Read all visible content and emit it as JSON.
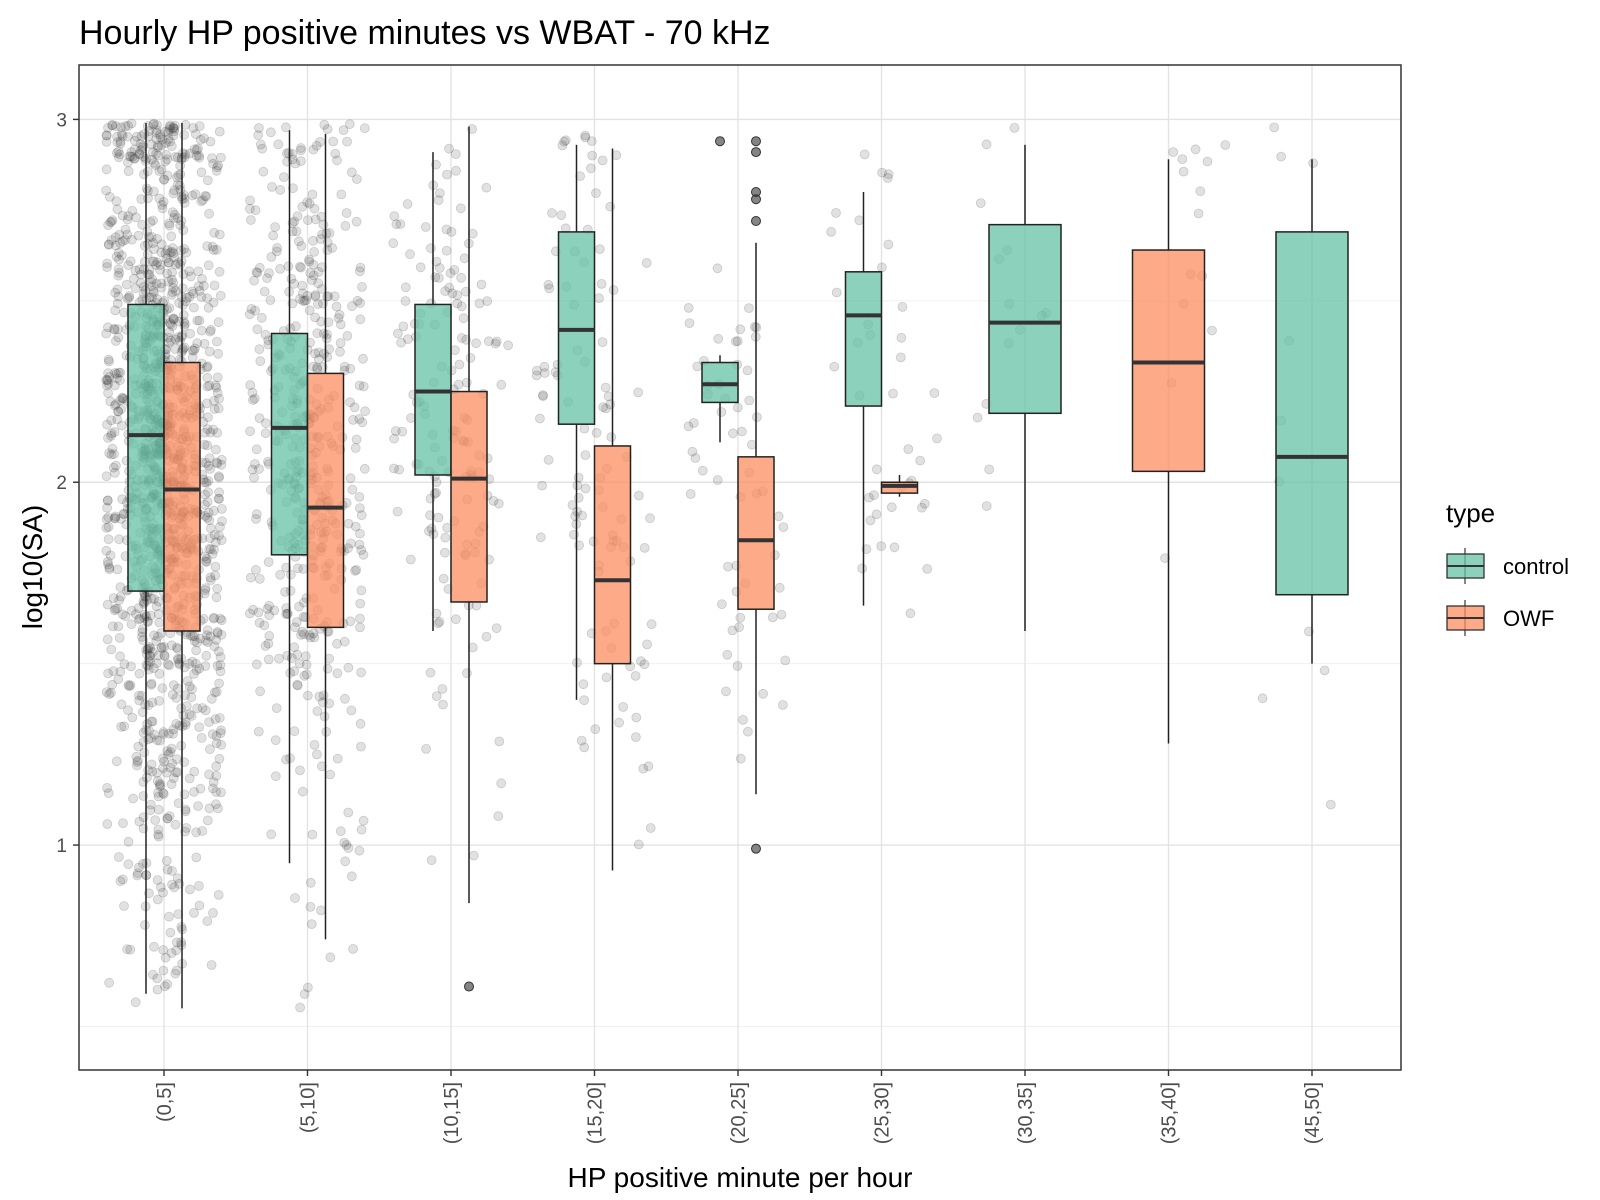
{
  "chart_data": {
    "type": "boxplot",
    "title": "Hourly HP positive minutes vs WBAT - 70 kHz",
    "xlabel": "HP positive minute per hour",
    "ylabel": "log10(SA)",
    "ylim": [
      0.38,
      3.15
    ],
    "yticks": [
      1,
      2,
      3
    ],
    "grid": true,
    "legend": {
      "title": "type",
      "position": "right",
      "entries": [
        {
          "name": "control",
          "color": "#66c2a5"
        },
        {
          "name": "OWF",
          "color": "#fc8d62"
        }
      ]
    },
    "categories": [
      "(0,5]",
      "(5,10]",
      "(10,15]",
      "(15,20]",
      "(20,25]",
      "(25,30]",
      "(30,35]",
      "(35,40]",
      "(45,50]"
    ],
    "colors": {
      "control": "#66c2a5",
      "OWF": "#fc8d62",
      "points": "#333333",
      "box_stroke": "#222222"
    },
    "series": [
      {
        "name": "control",
        "boxes": [
          {
            "category": "(0,5]",
            "whisker_low": 0.59,
            "q1": 1.7,
            "median": 2.13,
            "q3": 2.49,
            "whisker_high": 2.99,
            "outliers": []
          },
          {
            "category": "(5,10]",
            "whisker_low": 0.95,
            "q1": 1.8,
            "median": 2.15,
            "q3": 2.41,
            "whisker_high": 2.97,
            "outliers": []
          },
          {
            "category": "(10,15]",
            "whisker_low": 1.59,
            "q1": 2.02,
            "median": 2.25,
            "q3": 2.49,
            "whisker_high": 2.91,
            "outliers": []
          },
          {
            "category": "(15,20]",
            "whisker_low": 1.4,
            "q1": 2.16,
            "median": 2.42,
            "q3": 2.69,
            "whisker_high": 2.93,
            "outliers": []
          },
          {
            "category": "(20,25]",
            "whisker_low": 2.11,
            "q1": 2.22,
            "median": 2.27,
            "q3": 2.33,
            "whisker_high": 2.35,
            "outliers": [
              2.94
            ]
          },
          {
            "category": "(25,30]",
            "whisker_low": 1.66,
            "q1": 2.21,
            "median": 2.46,
            "q3": 2.58,
            "whisker_high": 2.8,
            "outliers": []
          },
          {
            "category": "(30,35]",
            "whisker_low": 1.59,
            "q1": 2.19,
            "median": 2.44,
            "q3": 2.71,
            "whisker_high": 2.93,
            "outliers": []
          },
          {
            "category": "(45,50]",
            "whisker_low": 1.5,
            "q1": 1.69,
            "median": 2.07,
            "q3": 2.69,
            "whisker_high": 2.89,
            "outliers": []
          }
        ]
      },
      {
        "name": "OWF",
        "boxes": [
          {
            "category": "(0,5]",
            "whisker_low": 0.55,
            "q1": 1.59,
            "median": 1.98,
            "q3": 2.33,
            "whisker_high": 2.99,
            "outliers": []
          },
          {
            "category": "(5,10]",
            "whisker_low": 0.74,
            "q1": 1.6,
            "median": 1.93,
            "q3": 2.3,
            "whisker_high": 2.96,
            "outliers": []
          },
          {
            "category": "(10,15]",
            "whisker_low": 0.84,
            "q1": 1.67,
            "median": 2.01,
            "q3": 2.25,
            "whisker_high": 2.98,
            "outliers": [
              0.61
            ]
          },
          {
            "category": "(15,20]",
            "whisker_low": 0.93,
            "q1": 1.5,
            "median": 1.73,
            "q3": 2.1,
            "whisker_high": 2.92,
            "outliers": []
          },
          {
            "category": "(20,25]",
            "whisker_low": 1.14,
            "q1": 1.65,
            "median": 1.84,
            "q3": 2.07,
            "whisker_high": 2.66,
            "outliers": [
              0.99,
              2.72,
              2.78,
              2.8,
              2.91,
              2.94
            ]
          },
          {
            "category": "(25,30]",
            "whisker_low": 1.96,
            "q1": 1.97,
            "median": 1.99,
            "q3": 2.0,
            "whisker_high": 2.02,
            "outliers": []
          },
          {
            "category": "(35,40]",
            "whisker_low": 1.28,
            "q1": 2.03,
            "median": 2.33,
            "q3": 2.64,
            "whisker_high": 2.89,
            "outliers": []
          }
        ]
      }
    ]
  }
}
